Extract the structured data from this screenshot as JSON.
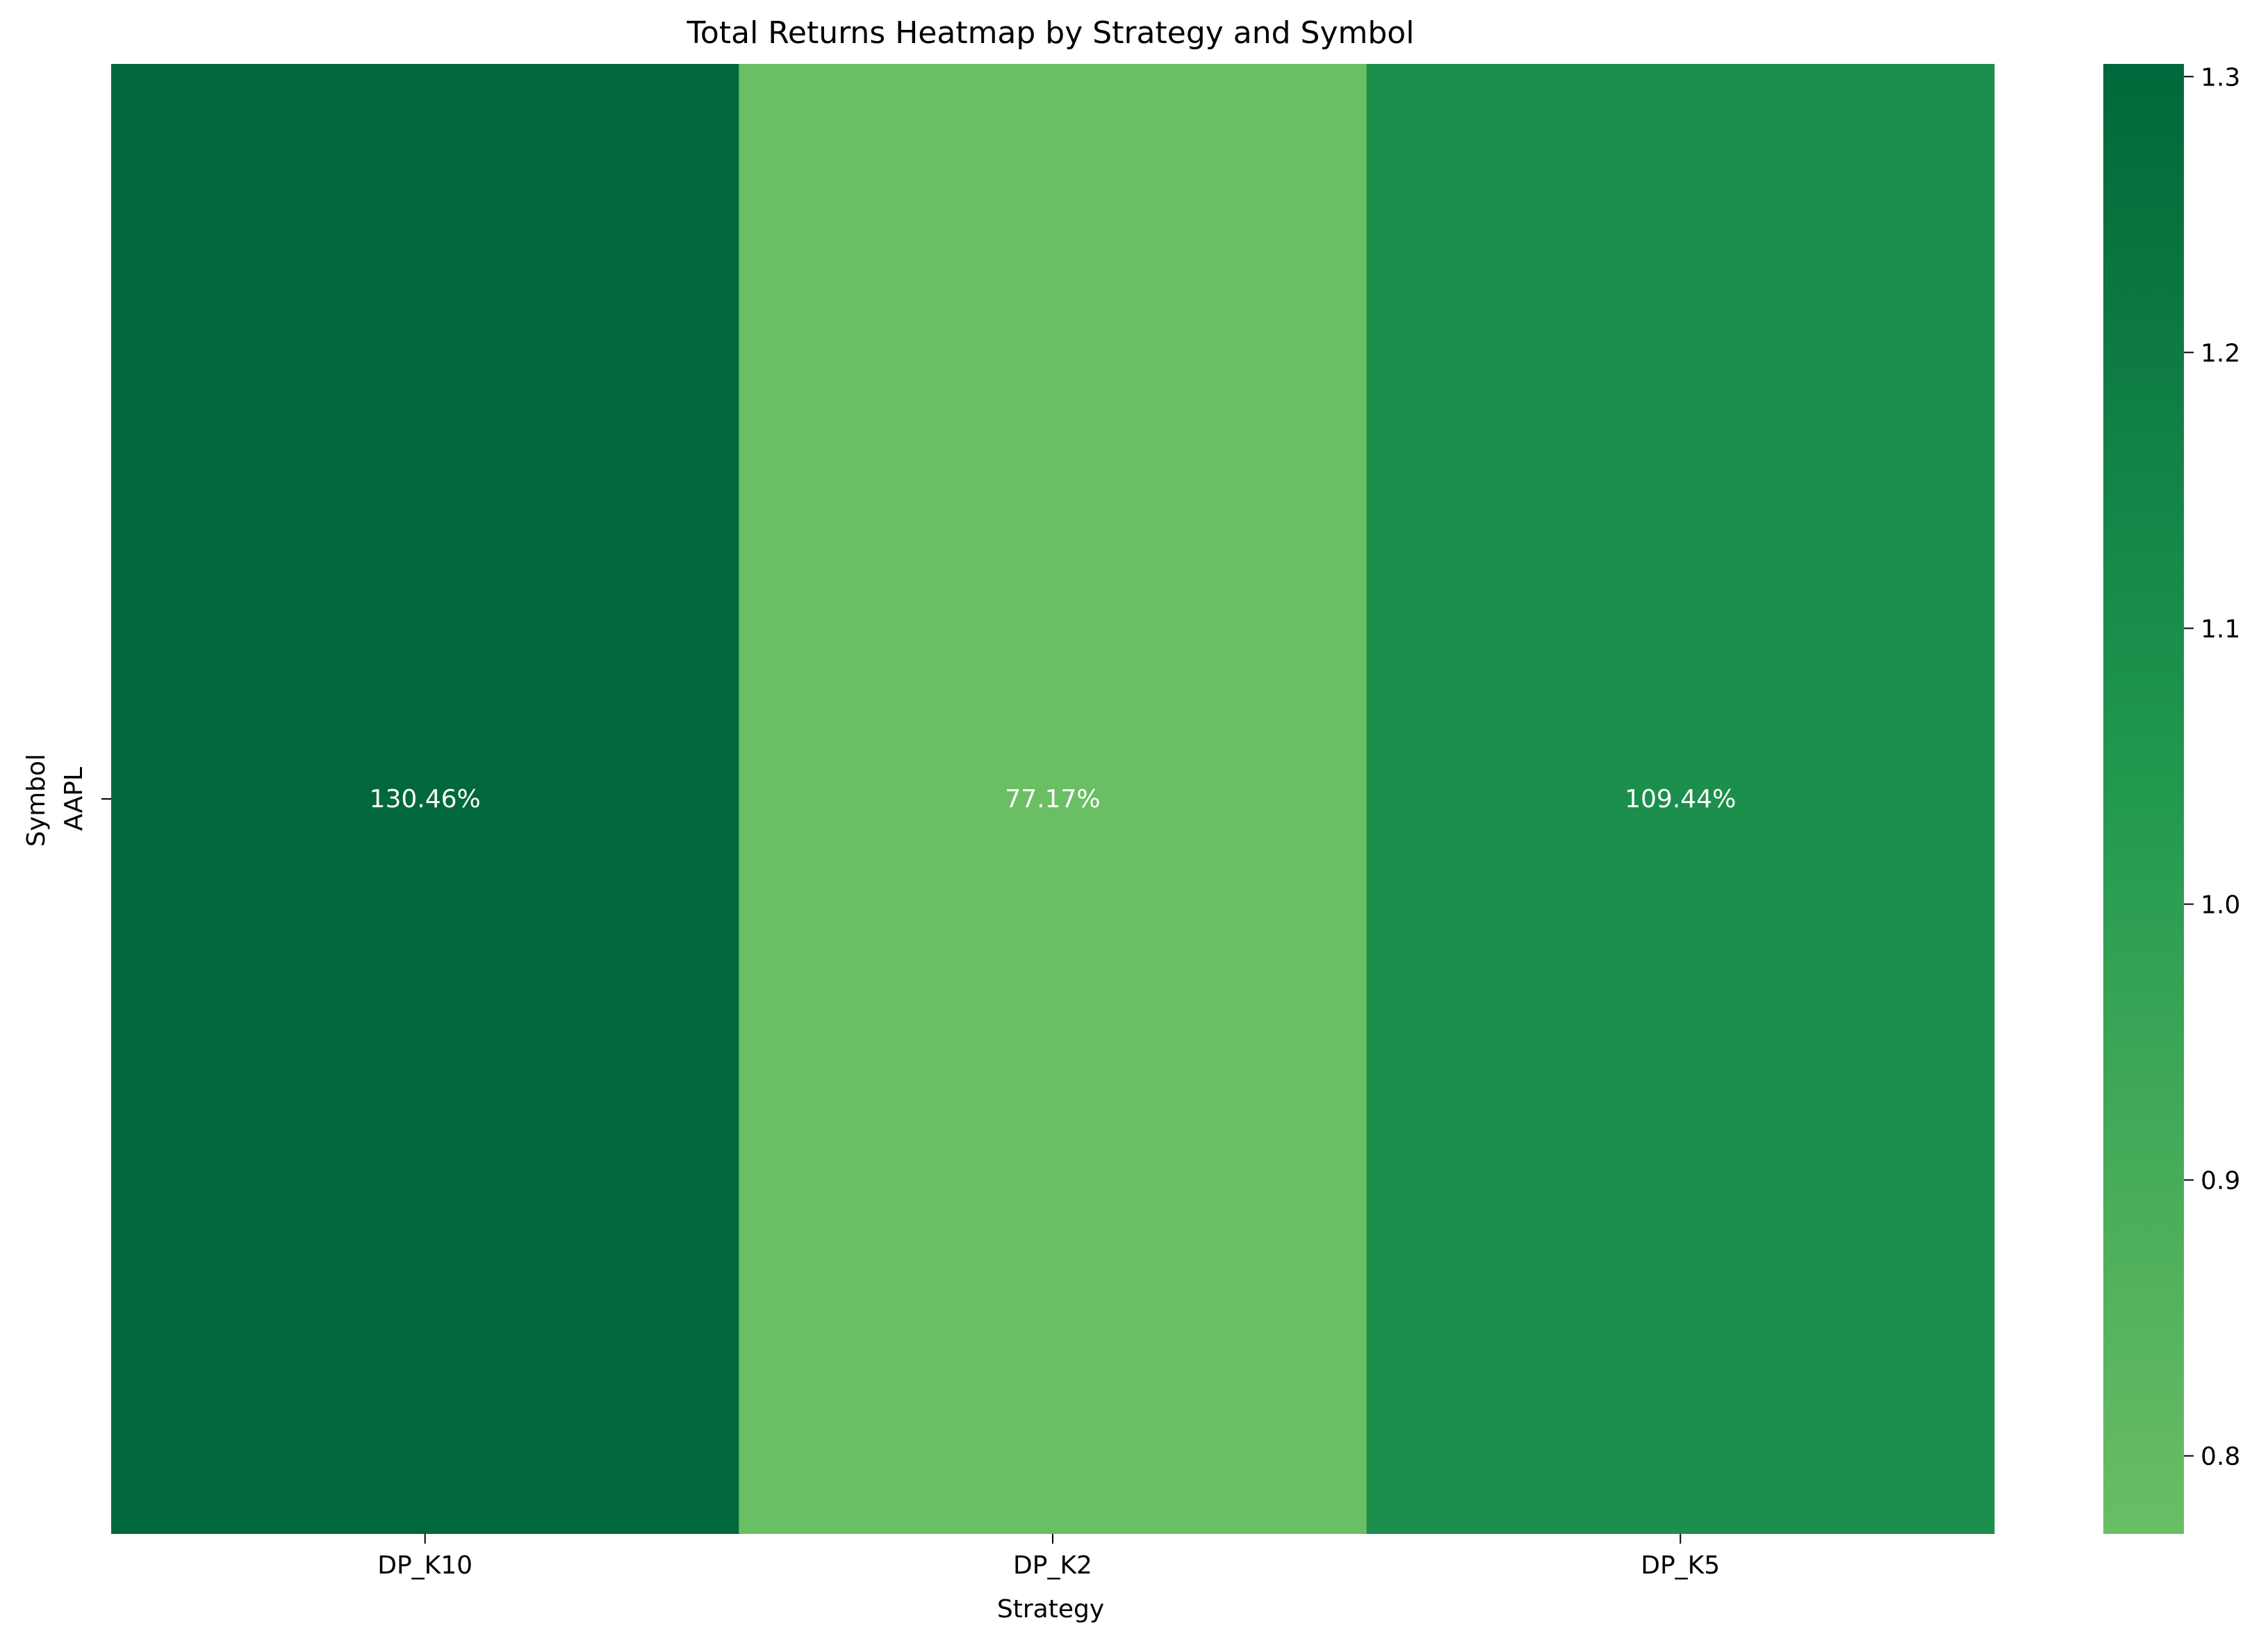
{
  "chart_data": {
    "type": "heatmap",
    "title": "Total Returns Heatmap by Strategy and Symbol",
    "xlabel": "Strategy",
    "ylabel": "Symbol",
    "x_categories": [
      "DP_K10",
      "DP_K2",
      "DP_K5"
    ],
    "y_categories": [
      "AAPL"
    ],
    "values": [
      [
        1.3046,
        0.7717,
        1.0944
      ]
    ],
    "annotations": [
      [
        "130.46%",
        "77.17%",
        "109.44%"
      ]
    ],
    "colorbar": {
      "range": [
        0.7717,
        1.3046
      ],
      "ticks": [
        0.8,
        0.9,
        1.0,
        1.1,
        1.2,
        1.3
      ],
      "tick_labels": [
        "0.8",
        "0.9",
        "1.0",
        "1.1",
        "1.2",
        "1.3"
      ],
      "colors": [
        "#6abe64",
        "#00683a"
      ]
    }
  }
}
